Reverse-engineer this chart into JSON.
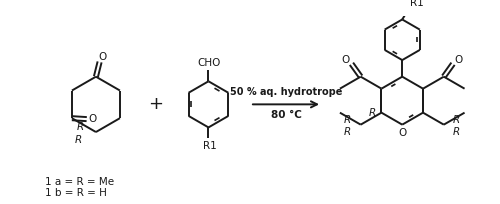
{
  "background_color": "#ffffff",
  "line_color": "#1a1a1a",
  "line_width": 1.4,
  "text_color": "#1a1a1a",
  "arrow_text_line1": "50 % aq. hydrotrope",
  "arrow_text_line2": "80 °C",
  "label_1a": "1 a = R = Me",
  "label_1b": "1 b = R = H",
  "fig_width": 5.0,
  "fig_height": 2.04,
  "dpi": 100,
  "font_size_main": 7.5,
  "font_size_arrow": 7.0,
  "font_size_plus": 13
}
